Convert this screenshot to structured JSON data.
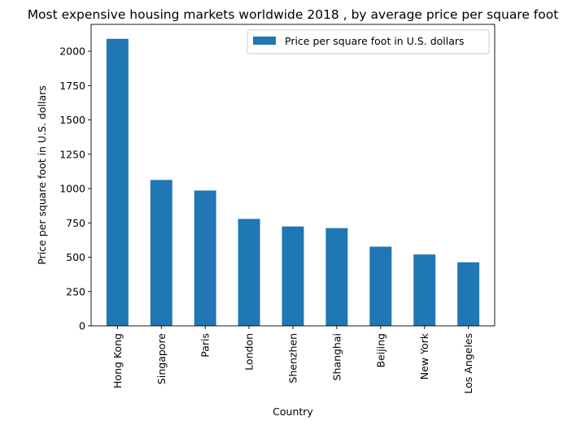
{
  "chart_data": {
    "type": "bar",
    "title": "Most expensive housing markets worldwide 2018 , by average price per square foot",
    "xlabel": "Country",
    "ylabel": "Price per square foot in U.S. dollars",
    "categories": [
      "Hong Kong",
      "Singapore",
      "Paris",
      "London",
      "Shenzhen",
      "Shanghai",
      "Beijing",
      "New York",
      "Los Angeles"
    ],
    "series": [
      {
        "name": "Price per square foot in U.S. dollars",
        "values": [
          2091,
          1063,
          986,
          779,
          724,
          712,
          577,
          520,
          463
        ],
        "color": "#1f77b4"
      }
    ],
    "yticks": [
      0,
      250,
      500,
      750,
      1000,
      1250,
      1500,
      1750,
      2000
    ],
    "ylim": [
      0,
      2196
    ],
    "legend_position": "top-right",
    "grid": false
  }
}
